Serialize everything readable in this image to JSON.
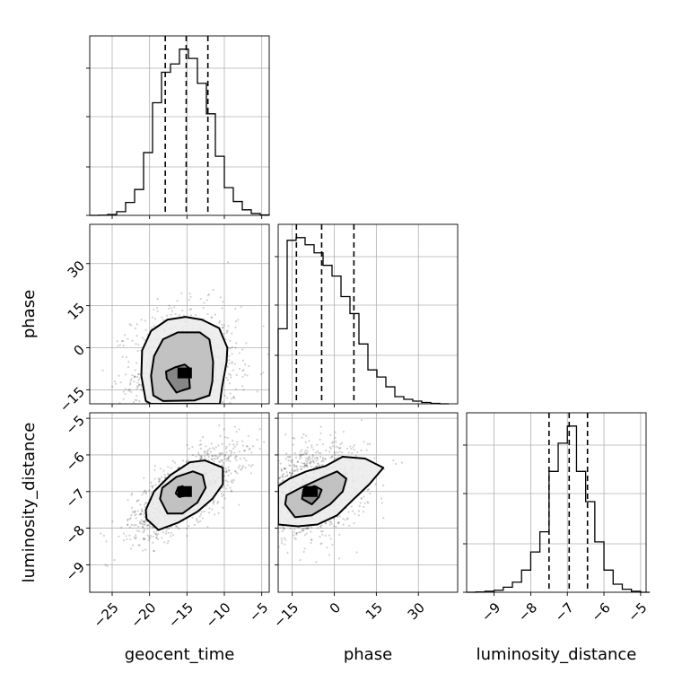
{
  "chart_data": {
    "type": "corner",
    "parameters": [
      {
        "key": "geocent_time",
        "label": "geocent_time",
        "range": [
          -28,
          -4
        ],
        "ticks": [
          -25,
          -20,
          -15,
          -10,
          -5
        ],
        "quantiles": [
          -17.9,
          -15.1,
          -12.2
        ],
        "hist": [
          [
            -28.0,
            0
          ],
          [
            -26.8,
            0.2
          ],
          [
            -25.6,
            1
          ],
          [
            -24.4,
            4
          ],
          [
            -23.2,
            14
          ],
          [
            -22.0,
            28
          ],
          [
            -20.8,
            68
          ],
          [
            -19.6,
            122
          ],
          [
            -18.4,
            155
          ],
          [
            -17.2,
            164
          ],
          [
            -16.0,
            180
          ],
          [
            -14.8,
            170
          ],
          [
            -13.6,
            143
          ],
          [
            -12.4,
            110
          ],
          [
            -11.2,
            64
          ],
          [
            -10.0,
            30
          ],
          [
            -8.8,
            15
          ],
          [
            -7.6,
            6
          ],
          [
            -6.4,
            2
          ],
          [
            -5.2,
            0.5
          ]
        ]
      },
      {
        "key": "phase",
        "label": "phase",
        "range": [
          -20,
          44
        ],
        "ticks": [
          -15,
          0,
          15,
          30
        ],
        "quantiles": [
          -13.5,
          -4.5,
          7.0
        ],
        "hist": [
          [
            -20.0,
            84
          ],
          [
            -16.8,
            183
          ],
          [
            -13.6,
            186
          ],
          [
            -10.4,
            178
          ],
          [
            -7.2,
            169
          ],
          [
            -4.0,
            155
          ],
          [
            -0.8,
            143
          ],
          [
            2.4,
            120
          ],
          [
            5.6,
            101
          ],
          [
            8.8,
            67
          ],
          [
            12.0,
            38
          ],
          [
            15.2,
            30
          ],
          [
            18.4,
            19
          ],
          [
            21.6,
            8
          ],
          [
            24.8,
            5
          ],
          [
            28.0,
            3
          ],
          [
            31.2,
            1.5
          ],
          [
            34.4,
            0.5
          ],
          [
            37.6,
            0
          ]
        ]
      },
      {
        "key": "luminosity_distance",
        "label": "luminosity_distance",
        "range": [
          -9.75,
          -4.85
        ],
        "ticks": [
          -9,
          -8,
          -7,
          -6,
          -5
        ],
        "quantiles": [
          -7.5,
          -6.95,
          -6.45
        ],
        "hist": [
          [
            -9.75,
            0
          ],
          [
            -9.5,
            0.3
          ],
          [
            -9.25,
            1
          ],
          [
            -9.0,
            2
          ],
          [
            -8.75,
            5
          ],
          [
            -8.5,
            10
          ],
          [
            -8.25,
            22
          ],
          [
            -8.0,
            40
          ],
          [
            -7.75,
            60
          ],
          [
            -7.5,
            120
          ],
          [
            -7.25,
            148
          ],
          [
            -7.0,
            165
          ],
          [
            -6.75,
            120
          ],
          [
            -6.5,
            90
          ],
          [
            -6.25,
            50
          ],
          [
            -6.0,
            22
          ],
          [
            -5.75,
            8
          ],
          [
            -5.5,
            3
          ],
          [
            -5.25,
            1
          ],
          [
            -5.0,
            0
          ]
        ]
      }
    ],
    "pairs": [
      {
        "x": "geocent_time",
        "y": "phase",
        "center": [
          -15.3,
          -9
        ],
        "spread": [
          2.8,
          9
        ],
        "corr": 0.05,
        "contours": [
          [
            [
              -17.2,
              -13
            ],
            [
              -16.4,
              -16
            ],
            [
              -15.6,
              -15.2
            ],
            [
              -14.6,
              -14.4
            ],
            [
              -14.7,
              -11
            ],
            [
              -15.2,
              -9
            ],
            [
              -14.6,
              -7.5
            ],
            [
              -15.3,
              -6
            ],
            [
              -16.6,
              -7
            ],
            [
              -17.8,
              -8.5
            ],
            [
              -17.7,
              -11
            ]
          ],
          [
            [
              -19.5,
              -17
            ],
            [
              -18.2,
              -19
            ],
            [
              -14,
              -18.8
            ],
            [
              -12,
              -17
            ],
            [
              -11.6,
              -12
            ],
            [
              -11.5,
              -5
            ],
            [
              -12,
              3
            ],
            [
              -13.3,
              5.5
            ],
            [
              -16.2,
              5.5
            ],
            [
              -18.2,
              3
            ],
            [
              -19.4,
              -3
            ],
            [
              -19.8,
              -10
            ]
          ],
          [
            [
              -20.5,
              -19
            ],
            [
              -19.8,
              -20
            ],
            [
              -10.6,
              -20
            ],
            [
              -10.3,
              -14
            ],
            [
              -9.7,
              -5
            ],
            [
              -9.6,
              0
            ],
            [
              -10.7,
              7
            ],
            [
              -13,
              10
            ],
            [
              -15.2,
              11
            ],
            [
              -17.6,
              10
            ],
            [
              -19.8,
              6
            ],
            [
              -21,
              -1
            ],
            [
              -21.1,
              -10
            ]
          ]
        ]
      },
      {
        "x": "geocent_time",
        "y": "luminosity_distance",
        "center": [
          -15.3,
          -7.0
        ],
        "spread": [
          2.8,
          0.48
        ],
        "corr": 0.7,
        "contours": [
          [
            [
              -16.5,
              -7.05
            ],
            [
              -16,
              -7.15
            ],
            [
              -15.4,
              -7.12
            ],
            [
              -15.2,
              -6.95
            ],
            [
              -15.6,
              -6.85
            ],
            [
              -16.2,
              -6.9
            ]
          ],
          [
            [
              -18.6,
              -7.2
            ],
            [
              -17.6,
              -7.6
            ],
            [
              -15.6,
              -7.6
            ],
            [
              -13.6,
              -7.3
            ],
            [
              -12.5,
              -6.9
            ],
            [
              -12.9,
              -6.55
            ],
            [
              -14.2,
              -6.45
            ],
            [
              -16.4,
              -6.6
            ],
            [
              -18.3,
              -6.9
            ]
          ],
          [
            [
              -20.4,
              -7.75
            ],
            [
              -18.8,
              -8.05
            ],
            [
              -16.2,
              -7.85
            ],
            [
              -13.6,
              -7.55
            ],
            [
              -11.6,
              -7.2
            ],
            [
              -10.2,
              -6.8
            ],
            [
              -10.2,
              -6.35
            ],
            [
              -12.6,
              -6.15
            ],
            [
              -14.6,
              -6.2
            ],
            [
              -17.2,
              -6.55
            ],
            [
              -19.4,
              -7.0
            ],
            [
              -20.5,
              -7.5
            ]
          ]
        ]
      },
      {
        "x": "phase",
        "y": "luminosity_distance",
        "center": [
          -8.5,
          -7.0
        ],
        "spread": [
          8,
          0.48
        ],
        "corr": 0.3,
        "contours": [
          [
            [
              -11.5,
              -7.2
            ],
            [
              -8,
              -7.35
            ],
            [
              -5.5,
              -7.15
            ],
            [
              -4.5,
              -6.95
            ],
            [
              -7,
              -6.85
            ],
            [
              -11,
              -6.95
            ]
          ],
          [
            [
              -17.5,
              -7.35
            ],
            [
              -14,
              -7.7
            ],
            [
              -8,
              -7.65
            ],
            [
              -1.5,
              -7.35
            ],
            [
              3,
              -7.0
            ],
            [
              4.3,
              -6.65
            ],
            [
              1,
              -6.45
            ],
            [
              -5,
              -6.65
            ],
            [
              -12,
              -6.9
            ],
            [
              -17,
              -7.1
            ]
          ],
          [
            [
              -20,
              -7.9
            ],
            [
              -13,
              -7.95
            ],
            [
              -6,
              -7.9
            ],
            [
              1,
              -7.65
            ],
            [
              7,
              -7.2
            ],
            [
              12.5,
              -6.8
            ],
            [
              17.5,
              -6.35
            ],
            [
              11,
              -6.1
            ],
            [
              3,
              -6.05
            ],
            [
              -3,
              -6.3
            ],
            [
              -10,
              -6.45
            ],
            [
              -16,
              -6.65
            ],
            [
              -20,
              -6.85
            ]
          ]
        ]
      }
    ]
  }
}
